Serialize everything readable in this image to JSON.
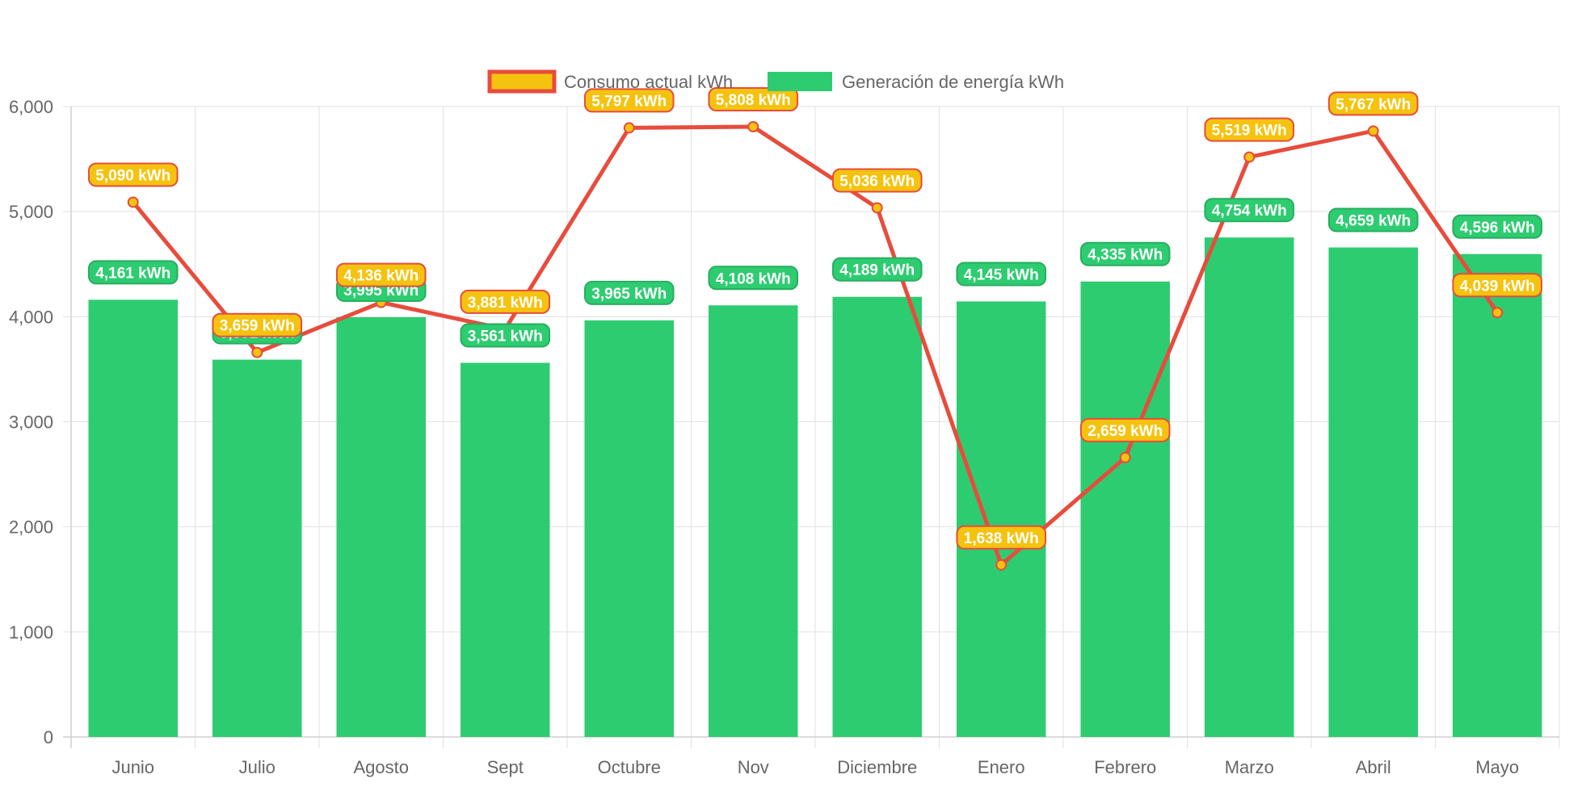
{
  "chart_data": {
    "type": "bar",
    "categories": [
      "Junio",
      "Julio",
      "Agosto",
      "Sept",
      "Octubre",
      "Nov",
      "Diciembre",
      "Enero",
      "Febrero",
      "Marzo",
      "Abril",
      "Mayo"
    ],
    "ylim": [
      0,
      6000
    ],
    "yticks": [
      "0",
      "1,000",
      "2,000",
      "3,000",
      "4,000",
      "5,000",
      "6,000"
    ],
    "ytick_values": [
      0,
      1000,
      2000,
      3000,
      4000,
      5000,
      6000
    ],
    "grid": true,
    "legend_position": "top",
    "unit_suffix": " kWh",
    "series": [
      {
        "name": "Consumo actual kWh",
        "type": "line",
        "color": "#e74c3c",
        "fill_color": "#f5c30f",
        "values": [
          5090,
          3659,
          4136,
          3881,
          5797,
          5808,
          5036,
          1638,
          2659,
          5519,
          5767,
          4039
        ],
        "labels": [
          "5,090 kWh",
          "3,659 kWh",
          "4,136 kWh",
          "3,881 kWh",
          "5,797 kWh",
          "5,808 kWh",
          "5,036 kWh",
          "1,638 kWh",
          "2,659 kWh",
          "5,519 kWh",
          "5,767 kWh",
          "4,039 kWh"
        ]
      },
      {
        "name": "Generación de energía kWh",
        "type": "bar",
        "color": "#2ecc71",
        "values": [
          4161,
          3591,
          3995,
          3561,
          3965,
          4108,
          4189,
          4145,
          4335,
          4754,
          4659,
          4596
        ],
        "labels": [
          "4,161 kWh",
          "3,591 kWh",
          "3,995 kWh",
          "3,561 kWh",
          "3,965 kWh",
          "4,108 kWh",
          "4,189 kWh",
          "4,145 kWh",
          "4,335 kWh",
          "4,754 kWh",
          "4,659 kWh",
          "4,596 kWh"
        ]
      }
    ]
  }
}
